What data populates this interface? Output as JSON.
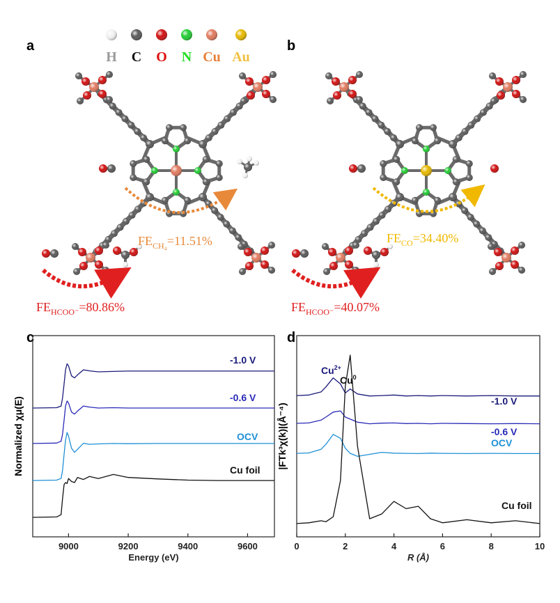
{
  "panel_labels": [
    "a",
    "b",
    "c",
    "d"
  ],
  "legend_atoms": [
    {
      "symbol": "H",
      "color": "#9a9a9a",
      "ball": "#f2f2f2"
    },
    {
      "symbol": "C",
      "color": "#111111",
      "ball": "#5a5a5a"
    },
    {
      "symbol": "O",
      "color": "#e01010",
      "ball": "#d01010"
    },
    {
      "symbol": "N",
      "color": "#22dd22",
      "ball": "#22cc33"
    },
    {
      "symbol": "Cu",
      "color": "#e8803a",
      "ball": "#e07a5f"
    },
    {
      "symbol": "Au",
      "color": "#f0c040",
      "ball": "#e6b800"
    }
  ],
  "panel_a": {
    "product": {
      "fe": "FE",
      "sub": "CH₄",
      "value": "=11.51%",
      "color": "#e8893a"
    },
    "formate": {
      "fe": "FE",
      "sub": "HCOO⁻",
      "value": "=80.86%",
      "color": "#e02020"
    }
  },
  "panel_b": {
    "product": {
      "fe": "FE",
      "sub": "CO",
      "value": "=34.40%",
      "color": "#f0b800"
    },
    "formate": {
      "fe": "FE",
      "sub": "HCOO⁻",
      "value": "=40.07%",
      "color": "#e02020"
    }
  },
  "chart_data": [
    {
      "type": "line",
      "xlabel": "Energy (eV)",
      "ylabel": "Normalized χμ(E)",
      "xlim": [
        8880,
        9690
      ],
      "ylim": [
        0,
        10
      ],
      "xticks": [
        9000,
        9200,
        9400,
        9600
      ],
      "x": [
        8880,
        8960,
        8975,
        8980,
        8985,
        8990,
        8995,
        9000,
        9010,
        9020,
        9030,
        9050,
        9070,
        9100,
        9150,
        9200,
        9300,
        9400,
        9500,
        9690
      ],
      "series": [
        {
          "name": "-1.0 V",
          "color": "#1a1a7a",
          "values": [
            6.4,
            6.42,
            6.5,
            6.9,
            7.6,
            8.3,
            8.6,
            8.5,
            8.0,
            7.9,
            8.05,
            8.3,
            8.25,
            8.2,
            8.22,
            8.24,
            8.24,
            8.24,
            8.24,
            8.24
          ]
        },
        {
          "name": "-0.6 V",
          "color": "#2a2ab8",
          "values": [
            4.64,
            4.66,
            4.75,
            5.1,
            5.8,
            6.5,
            6.75,
            6.65,
            6.2,
            6.1,
            6.25,
            6.5,
            6.45,
            6.4,
            6.42,
            6.4,
            6.4,
            6.4,
            6.4,
            6.4
          ]
        },
        {
          "name": "OCV",
          "color": "#1e90d6",
          "values": [
            2.8,
            2.82,
            2.9,
            3.3,
            4.1,
            4.8,
            5.19,
            5.0,
            4.4,
            4.2,
            4.35,
            4.65,
            4.6,
            4.62,
            4.64,
            4.63,
            4.64,
            4.64,
            4.64,
            4.64
          ]
        },
        {
          "name": "Cu foil",
          "color": "#111111",
          "values": [
            0.97,
            0.99,
            1.1,
            1.9,
            2.6,
            2.7,
            2.65,
            2.9,
            2.75,
            2.7,
            2.95,
            2.85,
            3.0,
            2.9,
            3.1,
            2.95,
            2.88,
            2.82,
            2.8,
            2.8
          ]
        }
      ]
    },
    {
      "type": "line",
      "xlabel": "R (Å)",
      "ylabel": "|FTk³χ(k)|(Å⁻⁴)",
      "xlim": [
        0,
        10
      ],
      "ylim": [
        0,
        10
      ],
      "xticks": [
        0,
        2,
        4,
        6,
        8,
        10
      ],
      "x": [
        0,
        0.5,
        1,
        1.2,
        1.5,
        1.8,
        2.0,
        2.2,
        2.5,
        3,
        3.5,
        4,
        4.5,
        5,
        5.5,
        6,
        7,
        8,
        9,
        10
      ],
      "series": [
        {
          "name": "-1.0 V",
          "color": "#1a1a7a",
          "values": [
            7.02,
            7.05,
            7.2,
            7.45,
            7.9,
            7.6,
            7.15,
            7.35,
            7.1,
            7.0,
            7.02,
            7.05,
            7.0,
            7.02,
            7.0,
            7.02,
            7.0,
            7.02,
            7.0,
            7.0
          ]
        },
        {
          "name": "-0.6 V",
          "color": "#2a2ab8",
          "values": [
            5.64,
            5.66,
            5.8,
            5.95,
            6.2,
            6.26,
            5.95,
            5.85,
            5.7,
            5.62,
            5.65,
            5.66,
            5.63,
            5.64,
            5.62,
            5.64,
            5.63,
            5.62,
            5.63,
            5.62
          ]
        },
        {
          "name": "OCV",
          "color": "#1e90d6",
          "values": [
            4.15,
            4.17,
            4.35,
            4.6,
            5.09,
            4.9,
            4.4,
            4.15,
            4.0,
            4.1,
            4.2,
            4.16,
            4.15,
            4.14,
            4.16,
            4.15,
            4.14,
            4.15,
            4.14,
            4.14
          ]
        },
        {
          "name": "Cu foil",
          "color": "#111111",
          "values": [
            0.66,
            0.7,
            0.8,
            0.75,
            1.0,
            2.8,
            7.5,
            9.03,
            4.5,
            0.9,
            1.14,
            1.76,
            1.4,
            1.52,
            0.9,
            0.7,
            0.85,
            0.7,
            0.8,
            0.66
          ]
        }
      ],
      "annotations": [
        {
          "text": "Cu",
          "sup": "2+",
          "color": "#1a1a7a"
        },
        {
          "text": "Cu",
          "sup": "0",
          "color": "#111111"
        }
      ]
    }
  ]
}
